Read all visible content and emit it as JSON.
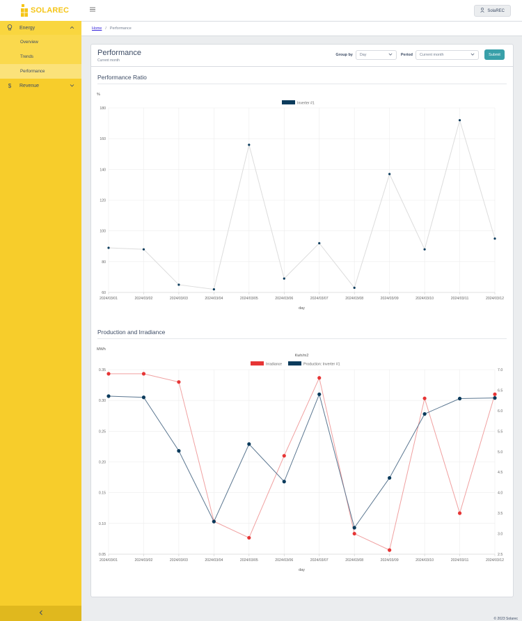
{
  "brand": {
    "name": "SOLAREC",
    "accent": "#f5c518"
  },
  "header": {
    "menu_icon": "hamburger-icon",
    "user_label": "SolaREC"
  },
  "sidebar": {
    "groups": [
      {
        "label": "Energy",
        "icon": "lightbulb-icon",
        "items": [
          "Overview",
          "Trends",
          "Performance"
        ],
        "active": "Performance"
      },
      {
        "label": "Revenue",
        "icon": "dollar-icon"
      }
    ],
    "collapse_icon": "chevron-left-icon"
  },
  "breadcrumb": {
    "home": "Home",
    "current": "Performance"
  },
  "page": {
    "title": "Performance",
    "subtitle": "Current month",
    "group_by_label": "Group by",
    "group_by_value": "Day",
    "period_label": "Period",
    "period_value": "Current month",
    "submit_label": "Submit"
  },
  "footer": {
    "text": "© 2023 Solarec"
  },
  "chart_data": [
    {
      "type": "line",
      "title": "Performance Ratio",
      "ylabel": "%",
      "xlabel": "day",
      "ylim": [
        60,
        180
      ],
      "yticks": [
        "60",
        "80",
        "100",
        "120",
        "140",
        "160",
        "180"
      ],
      "grid": true,
      "legend_position": "top-center",
      "categories": [
        "2024/03/01",
        "2024/03/02",
        "2024/03/03",
        "2024/03/04",
        "2024/03/05",
        "2024/03/06",
        "2024/03/07",
        "2024/03/08",
        "2024/03/09",
        "2024/03/10",
        "2024/03/11",
        "2024/03/12"
      ],
      "series": [
        {
          "name": "Inverter #1",
          "color": "#0b3b5c",
          "line_color": "#dcdcdc",
          "values": [
            89,
            88,
            65,
            62,
            156,
            69,
            92,
            63,
            137,
            88,
            172,
            95
          ]
        }
      ]
    },
    {
      "type": "line",
      "title": "Production and Irradiance",
      "ylabel": "MWh",
      "y2label": "Kwh/m2",
      "xlabel": "day",
      "ylim": [
        0.05,
        0.35
      ],
      "yticks": [
        "0.05",
        "0.10",
        "0.15",
        "0.20",
        "0.25",
        "0.30",
        "0.35"
      ],
      "y2lim": [
        2.5,
        7.0
      ],
      "y2ticks": [
        "2.5",
        "3.0",
        "3.5",
        "4.0",
        "4.5",
        "5.0",
        "5.5",
        "6.0",
        "6.5",
        "7.0"
      ],
      "grid": true,
      "legend_position": "top-center",
      "categories": [
        "2024/03/01",
        "2024/03/02",
        "2024/03/03",
        "2024/03/04",
        "2024/03/05",
        "2024/03/06",
        "2024/03/07",
        "2024/03/08",
        "2024/03/09",
        "2024/03/10",
        "2024/03/11",
        "2024/03/12"
      ],
      "series": [
        {
          "name": "Irradiance",
          "axis": "right",
          "color": "#e63535",
          "line_color": "#f0a0a0",
          "values": [
            6.9,
            6.9,
            6.7,
            3.3,
            2.9,
            4.9,
            6.8,
            3.0,
            2.6,
            6.3,
            3.5,
            6.4
          ]
        },
        {
          "name": "Production: Inverter #1",
          "axis": "left",
          "color": "#0b3b5c",
          "line_color": "#5a7690",
          "values": [
            0.307,
            0.305,
            0.218,
            0.103,
            0.229,
            0.168,
            0.31,
            0.093,
            0.174,
            0.278,
            0.303,
            0.304
          ]
        }
      ]
    }
  ]
}
